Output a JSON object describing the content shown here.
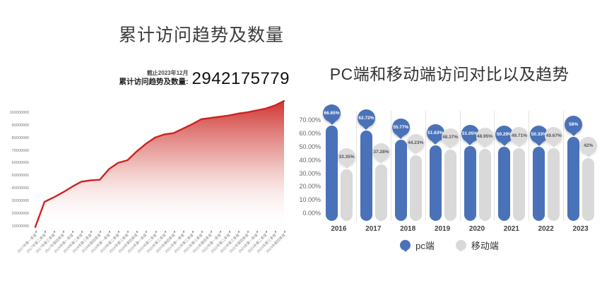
{
  "chart_data": [
    {
      "type": "area",
      "title": "累计访问趋势及数量",
      "annotation": {
        "date_note": "截止2023年12月",
        "label": "累计访问趋势及数量:",
        "value": "2942175779"
      },
      "x": [
        "2017年第一季度",
        "2017年第二季度",
        "2017年第三季度",
        "2017年第四季度",
        "2018年第一季度",
        "2018年第二季度",
        "2018年第三季度",
        "2018年第四季度",
        "2019年第一季度",
        "2019年第二季度",
        "2019年第三季度",
        "2019年第四季度",
        "2020年第一季度",
        "2020年第二季度",
        "2020年第三季度",
        "2020年第四季度",
        "2021年第一季度",
        "2021年第二季度",
        "2021年第三季度",
        "2021年第四季度",
        "2022年第一季度",
        "2022年第二季度",
        "2022年第三季度",
        "2022年第四季度",
        "2023年第一季度",
        "2023年第二季度",
        "2023年第三季度",
        "2023年第四季度"
      ],
      "values": [
        10000000,
        30000000,
        33500000,
        37500000,
        42000000,
        46000000,
        47000000,
        47500000,
        56000000,
        61000000,
        63000000,
        70000000,
        76000000,
        81000000,
        83500000,
        84500000,
        88000000,
        91500000,
        95500000,
        96500000,
        97500000,
        98500000,
        100000000,
        101000000,
        102500000,
        104000000,
        106500000,
        110000000
      ],
      "y_ticks": [
        "100000000",
        "90000000",
        "80000000",
        "70000000",
        "60000000",
        "50000000",
        "40000000",
        "30000000",
        "20000000",
        "10000000"
      ],
      "ylim": [
        0,
        115000000
      ],
      "line_color": "#cc2420",
      "fill_style": "red-to-white vertical gradient",
      "grid": false,
      "legend_position": "none"
    },
    {
      "type": "bar",
      "title": "PC端和移动端访问对比以及趋势",
      "categories": [
        "2016",
        "2017",
        "2018",
        "2019",
        "2020",
        "2021",
        "2022",
        "2023"
      ],
      "series": [
        {
          "name": "pc端",
          "color": "#4a72b8",
          "values": [
            66.65,
            62.72,
            55.77,
            51.63,
            51.05,
            50.29,
            50.33,
            58
          ],
          "labels": [
            "66.65%",
            "62.72%",
            "55.77%",
            "51.63%",
            "51.05%",
            "50.29%",
            "50.33%",
            "58%"
          ]
        },
        {
          "name": "移动端",
          "color": "#d9d9d9",
          "values": [
            33.35,
            37.28,
            44.23,
            48.37,
            48.95,
            49.71,
            49.67,
            42
          ],
          "labels": [
            "33.35%",
            "37.28%",
            "44.23%",
            "48.37%",
            "48.95%",
            "49.71%",
            "49.67%",
            "42%"
          ]
        }
      ],
      "y_ticks": [
        "70.00%",
        "60.00%",
        "50.00%",
        "40.00%",
        "30.00%",
        "20.00%",
        "10.00%",
        "0.00%"
      ],
      "ylim": [
        0,
        70
      ],
      "grid": false,
      "legend_position": "bottom"
    }
  ]
}
